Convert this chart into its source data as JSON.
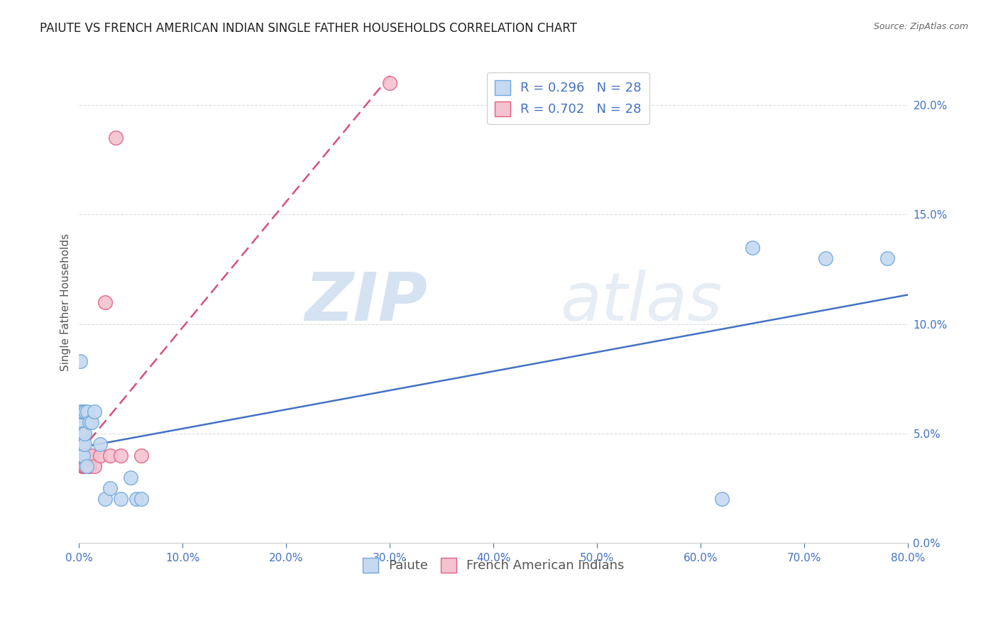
{
  "title": "PAIUTE VS FRENCH AMERICAN INDIAN SINGLE FATHER HOUSEHOLDS CORRELATION CHART",
  "source": "Source: ZipAtlas.com",
  "ylabel": "Single Father Households",
  "legend_paiute": "Paiute",
  "legend_french": "French American Indians",
  "legend_r_paiute": "R = 0.296",
  "legend_n_paiute": "N = 28",
  "legend_r_french": "R = 0.702",
  "legend_n_french": "N = 28",
  "watermark_zip": "ZIP",
  "watermark_atlas": "atlas",
  "paiute_x": [
    0.001,
    0.001,
    0.002,
    0.002,
    0.002,
    0.003,
    0.003,
    0.004,
    0.004,
    0.005,
    0.005,
    0.006,
    0.007,
    0.008,
    0.01,
    0.012,
    0.015,
    0.02,
    0.025,
    0.03,
    0.04,
    0.05,
    0.055,
    0.06,
    0.62,
    0.65,
    0.72,
    0.78
  ],
  "paiute_y": [
    0.083,
    0.045,
    0.055,
    0.04,
    0.06,
    0.05,
    0.045,
    0.04,
    0.06,
    0.045,
    0.05,
    0.06,
    0.035,
    0.06,
    0.055,
    0.055,
    0.06,
    0.045,
    0.02,
    0.025,
    0.02,
    0.03,
    0.02,
    0.02,
    0.02,
    0.135,
    0.13,
    0.13
  ],
  "french_x": [
    0.001,
    0.001,
    0.001,
    0.002,
    0.002,
    0.002,
    0.003,
    0.003,
    0.003,
    0.003,
    0.004,
    0.004,
    0.005,
    0.005,
    0.006,
    0.007,
    0.008,
    0.009,
    0.01,
    0.012,
    0.015,
    0.02,
    0.025,
    0.03,
    0.035,
    0.04,
    0.06,
    0.3
  ],
  "french_y": [
    0.04,
    0.045,
    0.05,
    0.04,
    0.045,
    0.05,
    0.04,
    0.045,
    0.035,
    0.04,
    0.04,
    0.035,
    0.04,
    0.035,
    0.035,
    0.04,
    0.035,
    0.04,
    0.035,
    0.04,
    0.035,
    0.04,
    0.11,
    0.04,
    0.185,
    0.04,
    0.04,
    0.21
  ],
  "paiute_face_color": "#c5d9f0",
  "paiute_edge_color": "#6fa8dc",
  "french_face_color": "#f4c2d0",
  "french_edge_color": "#e06080",
  "paiute_line_color": "#4472c4",
  "french_line_color": "#d9507a",
  "xlim": [
    0.0,
    0.8
  ],
  "ylim": [
    0.0,
    0.22
  ],
  "xticks": [
    0.0,
    0.1,
    0.2,
    0.3,
    0.4,
    0.5,
    0.6,
    0.7,
    0.8
  ],
  "yticks_right": [
    0.0,
    0.05,
    0.1,
    0.15,
    0.2
  ],
  "background_color": "#ffffff",
  "grid_color": "#dddddd",
  "title_fontsize": 12,
  "tick_fontsize": 11,
  "ylabel_fontsize": 11,
  "legend_fontsize": 13,
  "source_fontsize": 9
}
